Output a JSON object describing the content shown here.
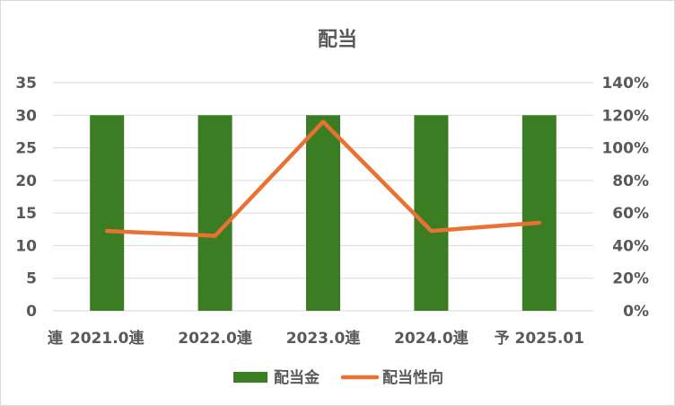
{
  "chart_data": {
    "type": "bar",
    "title": "配当",
    "categories": [
      "2021.0連",
      "2022.0連",
      "2023.0連",
      "2024.0連",
      "予 2025.01"
    ],
    "y_left_label_cut": "連",
    "series": [
      {
        "name": "配当金",
        "type": "bar",
        "axis": "left",
        "values": [
          30,
          30,
          30,
          30,
          30
        ],
        "color": "#3a7d22"
      },
      {
        "name": "配当性向",
        "type": "line",
        "axis": "right",
        "values": [
          49,
          46,
          116,
          49,
          54
        ],
        "color": "#e97132"
      }
    ],
    "y_left": {
      "min": 0,
      "max": 35,
      "step": 5,
      "ticks": [
        "0",
        "5",
        "10",
        "15",
        "20",
        "25",
        "30",
        "35"
      ]
    },
    "y_right": {
      "min": 0,
      "max": 140,
      "step": 20,
      "ticks": [
        "0%",
        "20%",
        "40%",
        "60%",
        "80%",
        "100%",
        "120%",
        "140%"
      ]
    },
    "grid": true,
    "legend_position": "bottom"
  }
}
